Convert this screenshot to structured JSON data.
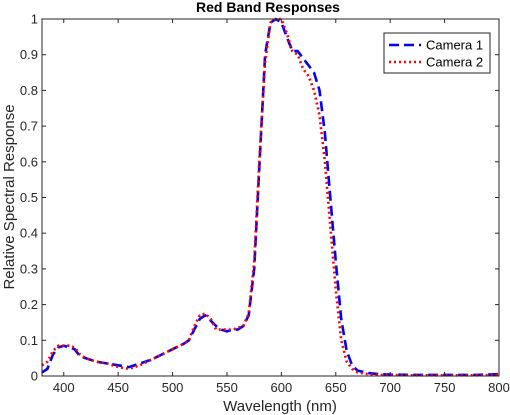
{
  "chart_data": {
    "type": "line",
    "title": "Red Band Responses",
    "xlabel": "Wavelength (nm)",
    "ylabel": "Relative Spectral Response",
    "xlim": [
      380,
      800
    ],
    "ylim": [
      0,
      1
    ],
    "xticks": [
      400,
      450,
      500,
      550,
      600,
      650,
      700,
      750,
      800
    ],
    "yticks": [
      0,
      0.1,
      0.2,
      0.3,
      0.4,
      0.5,
      0.6,
      0.7,
      0.8,
      0.9,
      1
    ],
    "grid": false,
    "legend_position": "top-right",
    "series": [
      {
        "name": "Camera 1",
        "color": "#0000ff",
        "style": "dashed",
        "x": [
          380,
          385,
          390,
          395,
          400,
          405,
          410,
          415,
          420,
          430,
          440,
          450,
          460,
          470,
          480,
          490,
          500,
          510,
          515,
          520,
          525,
          530,
          535,
          540,
          545,
          550,
          555,
          560,
          565,
          570,
          575,
          580,
          585,
          590,
          595,
          600,
          605,
          610,
          615,
          620,
          625,
          630,
          635,
          640,
          645,
          650,
          655,
          660,
          665,
          670,
          680,
          690,
          700,
          720,
          740,
          760,
          780,
          800
        ],
        "y": [
          0.01,
          0.02,
          0.06,
          0.08,
          0.085,
          0.08,
          0.075,
          0.055,
          0.05,
          0.04,
          0.035,
          0.03,
          0.025,
          0.035,
          0.045,
          0.06,
          0.075,
          0.09,
          0.1,
          0.13,
          0.16,
          0.17,
          0.155,
          0.14,
          0.13,
          0.125,
          0.13,
          0.13,
          0.14,
          0.17,
          0.3,
          0.6,
          0.9,
          0.99,
          1.0,
          0.99,
          0.95,
          0.91,
          0.91,
          0.89,
          0.87,
          0.85,
          0.8,
          0.68,
          0.5,
          0.32,
          0.16,
          0.07,
          0.03,
          0.015,
          0.008,
          0.005,
          0.004,
          0.003,
          0.003,
          0.003,
          0.003,
          0.005
        ]
      },
      {
        "name": "Camera 2",
        "color": "#ff0000",
        "style": "dotted",
        "x": [
          380,
          385,
          390,
          395,
          400,
          405,
          410,
          415,
          420,
          430,
          440,
          450,
          460,
          470,
          480,
          490,
          500,
          510,
          515,
          520,
          525,
          530,
          535,
          540,
          545,
          550,
          555,
          560,
          565,
          570,
          575,
          580,
          585,
          590,
          595,
          600,
          605,
          610,
          615,
          620,
          625,
          630,
          635,
          640,
          645,
          650,
          655,
          660,
          665,
          670,
          680,
          690,
          700,
          720,
          740,
          760,
          780,
          800
        ],
        "y": [
          0.03,
          0.04,
          0.07,
          0.085,
          0.085,
          0.085,
          0.08,
          0.06,
          0.05,
          0.04,
          0.035,
          0.025,
          0.02,
          0.03,
          0.045,
          0.06,
          0.075,
          0.09,
          0.1,
          0.14,
          0.17,
          0.175,
          0.16,
          0.13,
          0.13,
          0.13,
          0.13,
          0.135,
          0.14,
          0.175,
          0.32,
          0.62,
          0.88,
          0.99,
          1.0,
          1.0,
          0.96,
          0.91,
          0.9,
          0.86,
          0.84,
          0.8,
          0.73,
          0.6,
          0.42,
          0.24,
          0.1,
          0.04,
          0.02,
          0.01,
          0.005,
          0.003,
          0.003,
          0.002,
          0.002,
          0.002,
          0.002,
          0.003
        ]
      }
    ]
  }
}
